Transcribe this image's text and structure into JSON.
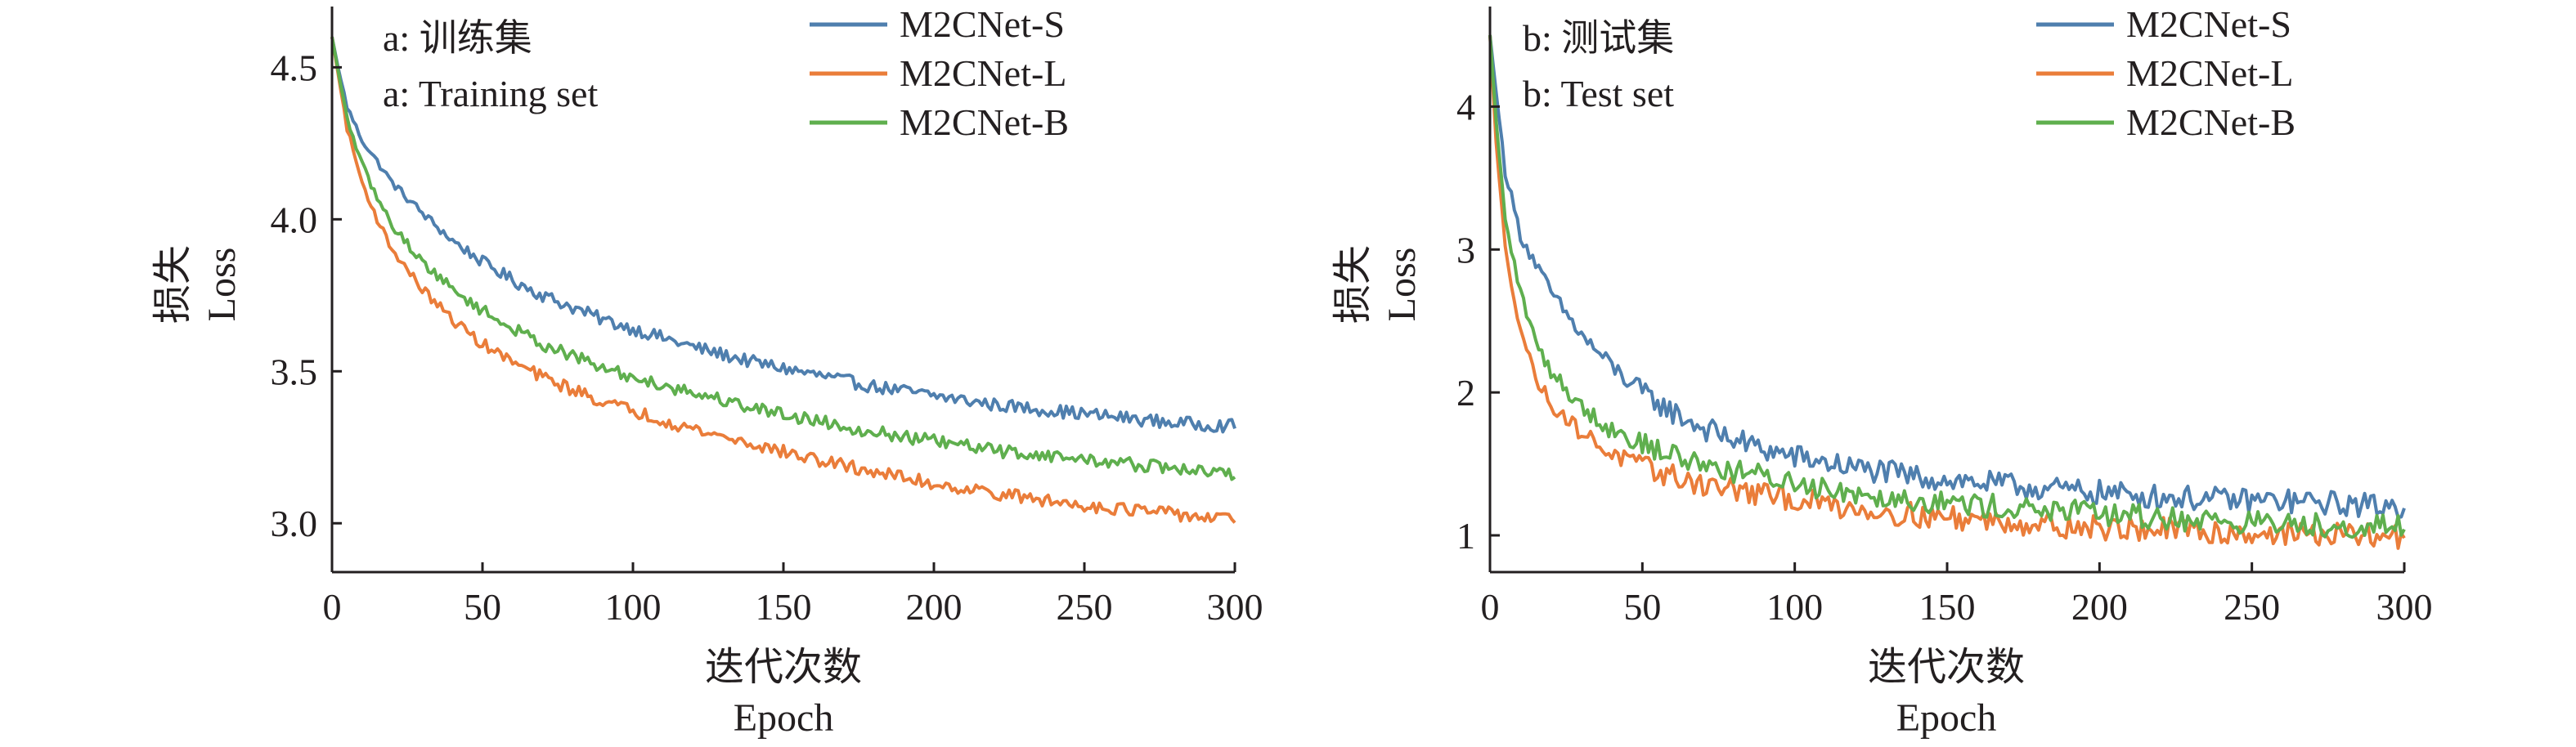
{
  "colors": {
    "s": "#4f7fae",
    "l": "#ea7d3a",
    "b": "#5faf4e",
    "axis": "#231f20"
  },
  "chart_data": [
    {
      "type": "line",
      "panel_label": "a: 训练集",
      "panel_label_en": "a: Training set",
      "xlabel": "迭代次数",
      "xlabel_en": "Epoch",
      "ylabel": "损失",
      "ylabel_en": "Loss",
      "xlim": [
        0,
        300
      ],
      "ylim": [
        2.92,
        4.7
      ],
      "xticks": [
        0,
        50,
        100,
        150,
        200,
        250,
        300
      ],
      "xtick_labels": [
        "0",
        "50",
        "100",
        "150",
        "200",
        "250",
        "300"
      ],
      "yticks": [
        3.0,
        3.5,
        4.0,
        4.5
      ],
      "ytick_labels": [
        "3.0",
        "3.5",
        "4.0",
        "4.5"
      ],
      "legend_position": "top-right",
      "x": [
        0,
        2,
        5,
        10,
        15,
        20,
        30,
        40,
        50,
        60,
        70,
        80,
        90,
        100,
        120,
        140,
        160,
        180,
        200,
        220,
        240,
        260,
        280,
        300
      ],
      "series": [
        {
          "name": "M2CNet-S",
          "color_key": "s",
          "values": [
            4.6,
            4.5,
            4.37,
            4.26,
            4.19,
            4.12,
            4.02,
            3.93,
            3.86,
            3.8,
            3.75,
            3.71,
            3.67,
            3.64,
            3.58,
            3.53,
            3.49,
            3.45,
            3.42,
            3.39,
            3.37,
            3.35,
            3.33,
            3.32
          ]
        },
        {
          "name": "M2CNet-L",
          "color_key": "l",
          "values": [
            4.6,
            4.48,
            4.3,
            4.12,
            4.0,
            3.9,
            3.77,
            3.67,
            3.59,
            3.53,
            3.48,
            3.44,
            3.4,
            3.37,
            3.31,
            3.26,
            3.21,
            3.17,
            3.13,
            3.1,
            3.07,
            3.05,
            3.03,
            3.01
          ]
        },
        {
          "name": "M2CNet-B",
          "color_key": "b",
          "values": [
            4.6,
            4.49,
            4.33,
            4.18,
            4.07,
            3.98,
            3.86,
            3.77,
            3.7,
            3.64,
            3.59,
            3.55,
            3.51,
            3.48,
            3.43,
            3.38,
            3.34,
            3.3,
            3.27,
            3.24,
            3.22,
            3.2,
            3.18,
            3.16
          ]
        }
      ]
    },
    {
      "type": "line",
      "panel_label": "b: 测试集",
      "panel_label_en": "b: Test set",
      "xlabel": "迭代次数",
      "xlabel_en": "Epoch",
      "ylabel": "损失",
      "ylabel_en": "Loss",
      "xlim": [
        0,
        300
      ],
      "ylim": [
        0.8,
        4.7
      ],
      "xticks": [
        0,
        50,
        100,
        150,
        200,
        250,
        300
      ],
      "xtick_labels": [
        "0",
        "50",
        "100",
        "150",
        "200",
        "250",
        "300"
      ],
      "yticks": [
        1,
        2,
        3,
        4
      ],
      "ytick_labels": [
        "1",
        "2",
        "3",
        "4"
      ],
      "legend_position": "top-right",
      "x": [
        0,
        2,
        5,
        10,
        15,
        20,
        30,
        40,
        50,
        60,
        70,
        80,
        90,
        100,
        120,
        140,
        160,
        180,
        200,
        220,
        240,
        260,
        280,
        300
      ],
      "series": [
        {
          "name": "M2CNet-S",
          "color_key": "s",
          "values": [
            4.5,
            4.1,
            3.55,
            3.1,
            2.9,
            2.7,
            2.4,
            2.18,
            2.0,
            1.86,
            1.75,
            1.67,
            1.6,
            1.55,
            1.47,
            1.41,
            1.37,
            1.33,
            1.3,
            1.27,
            1.25,
            1.24,
            1.22,
            1.2
          ]
        },
        {
          "name": "M2CNet-L",
          "color_key": "l",
          "values": [
            4.5,
            3.75,
            3.0,
            2.45,
            2.1,
            1.92,
            1.72,
            1.57,
            1.48,
            1.41,
            1.36,
            1.32,
            1.28,
            1.25,
            1.19,
            1.14,
            1.11,
            1.08,
            1.05,
            1.04,
            1.02,
            1.01,
            1.0,
            0.99
          ]
        },
        {
          "name": "M2CNet-B",
          "color_key": "b",
          "values": [
            4.5,
            3.9,
            3.2,
            2.7,
            2.35,
            2.15,
            1.9,
            1.74,
            1.64,
            1.56,
            1.5,
            1.45,
            1.41,
            1.37,
            1.3,
            1.25,
            1.21,
            1.18,
            1.15,
            1.12,
            1.1,
            1.08,
            1.07,
            1.05
          ]
        }
      ]
    }
  ]
}
